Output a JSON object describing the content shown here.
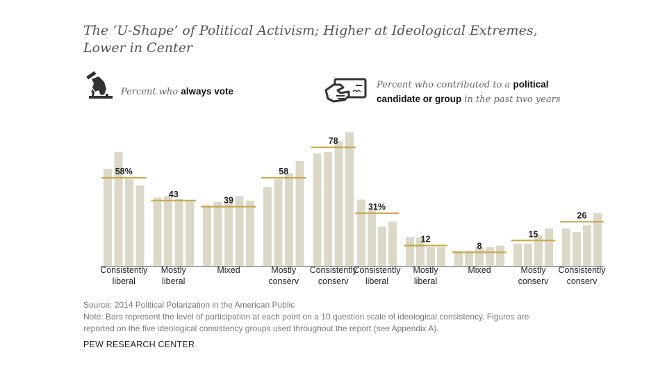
{
  "title": "The ‘U-Shape’ of Political Activism; Higher at Ideological Extremes, Lower in Center",
  "left_legend": {
    "icon": "voting-ballot-hand-icon",
    "prefix": "Percent who ",
    "bold": "always vote"
  },
  "right_legend": {
    "icon": "check-card-hand-icon",
    "prefix": "Percent who contributed to a ",
    "bold": "political candidate or group",
    "suffix": " in the past two years"
  },
  "colors": {
    "bar": "#dcd8c8",
    "avg_line": "#c9a94e",
    "axis": "#888888",
    "text": "#222222"
  },
  "chart_data": [
    {
      "type": "bar",
      "title": "Percent who always vote",
      "ylim": [
        0,
        100
      ],
      "categories": [
        "Consistently liberal",
        "Mostly liberal",
        "Mixed",
        "Mostly conserv",
        "Consistently conserv"
      ],
      "category_lines": [
        [
          "Consistently",
          "liberal"
        ],
        [
          "Mostly",
          "liberal"
        ],
        [
          "Mixed",
          ""
        ],
        [
          "Mostly",
          "conserv"
        ],
        [
          "Consistently",
          "conserv"
        ]
      ],
      "group_averages": [
        58,
        43,
        39,
        58,
        78
      ],
      "average_labels": [
        "58%",
        "43",
        "39",
        "58",
        "78"
      ],
      "bars": [
        [
          64,
          75,
          57,
          53
        ],
        [
          45,
          46,
          44,
          43
        ],
        [
          40,
          42,
          42,
          46,
          43
        ],
        [
          52,
          57,
          61,
          69
        ],
        [
          74,
          75,
          82,
          88
        ]
      ]
    },
    {
      "type": "bar",
      "title": "Percent who contributed to a political candidate or group in the past two years",
      "ylim": [
        0,
        100
      ],
      "categories": [
        "Consistently liberal",
        "Mostly liberal",
        "Mixed",
        "Mostly conserv",
        "Consistently conserv"
      ],
      "category_lines": [
        [
          "Consistently",
          "liberal"
        ],
        [
          "Mostly",
          "liberal"
        ],
        [
          "Mixed",
          ""
        ],
        [
          "Mostly",
          "conserv"
        ],
        [
          "Consistently",
          "conserv"
        ]
      ],
      "group_averages": [
        31,
        12,
        8,
        15,
        26
      ],
      "average_labels": [
        "31%",
        "12",
        "8",
        "15",
        "26"
      ],
      "bars": [
        [
          39,
          33,
          23,
          26
        ],
        [
          17,
          17,
          11,
          11
        ],
        [
          9,
          9,
          11,
          11,
          12
        ],
        [
          13,
          13,
          18,
          22
        ],
        [
          22,
          20,
          24,
          31
        ]
      ]
    }
  ],
  "footer": {
    "source": "Source: 2014 Political Polarization in the American Public",
    "note_line1": "Note: Bars represent the level of participation at each point on a 10 question scale of ideological consistency. Figures are",
    "note_line2": "reported on the five ideological consistency groups used throughout the report (see Appendix A).",
    "brand": "PEW RESEARCH CENTER"
  }
}
